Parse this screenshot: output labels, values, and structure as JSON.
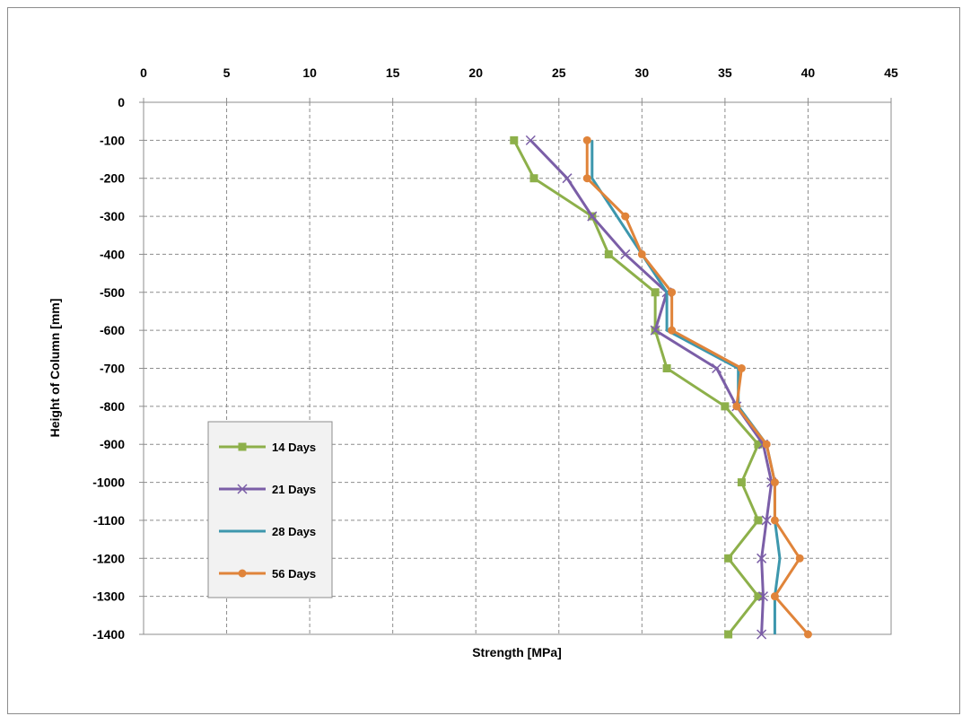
{
  "chart_data": {
    "type": "line",
    "xlabel": "Strength [MPa]",
    "ylabel": "Height of Column [mm]",
    "xlim": [
      0,
      45
    ],
    "ylim": [
      -1400,
      0
    ],
    "x_ticks": [
      0,
      5,
      10,
      15,
      20,
      25,
      30,
      35,
      40,
      45
    ],
    "y_ticks": [
      0,
      -100,
      -200,
      -300,
      -400,
      -500,
      -600,
      -700,
      -800,
      -900,
      -1000,
      -1100,
      -1200,
      -1300,
      -1400
    ],
    "grid": true,
    "legend_position": "lower-left",
    "heights": [
      -100,
      -200,
      -300,
      -400,
      -500,
      -600,
      -700,
      -800,
      -900,
      -1000,
      -1100,
      -1200,
      -1300,
      -1400
    ],
    "series": [
      {
        "name": "14 Days",
        "color": "#8db04a",
        "marker": "square",
        "values": [
          22.3,
          23.5,
          27.0,
          28.0,
          30.8,
          30.8,
          31.5,
          35.0,
          37.0,
          36.0,
          37.0,
          35.2,
          37.0,
          35.2
        ]
      },
      {
        "name": "21 Days",
        "color": "#7b5ea7",
        "marker": "x",
        "values": [
          23.3,
          25.5,
          27.0,
          29.0,
          31.5,
          30.8,
          34.5,
          35.7,
          37.3,
          37.8,
          37.5,
          37.2,
          37.3,
          37.2
        ]
      },
      {
        "name": "28 Days",
        "color": "#3d97ad",
        "marker": "none",
        "values": [
          27.0,
          27.0,
          28.5,
          30.0,
          31.5,
          31.5,
          35.8,
          35.8,
          37.5,
          38.0,
          38.0,
          38.3,
          38.0,
          38.0
        ]
      },
      {
        "name": "56 Days",
        "color": "#e0843a",
        "marker": "circle",
        "values": [
          26.7,
          26.7,
          29.0,
          30.0,
          31.8,
          31.8,
          36.0,
          35.7,
          37.5,
          38.0,
          38.0,
          39.5,
          38.0,
          40.0
        ]
      }
    ]
  }
}
